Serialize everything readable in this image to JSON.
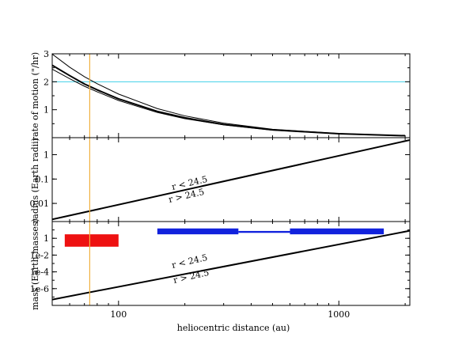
{
  "chart_data": {
    "type": "line",
    "xlabel": "heliocentric distance (au)",
    "xscale": "log",
    "xlim": [
      50,
      2100
    ],
    "x_ticks": [
      100,
      1000
    ],
    "x_tick_labels": [
      "100",
      "1000"
    ],
    "vline": {
      "x": 74,
      "color": "#f0b040"
    },
    "panels": [
      {
        "id": "rate",
        "ylabel": "rate of motion (\"/hr)",
        "yscale": "linear",
        "ylim": [
          0,
          3
        ],
        "y_ticks": [
          1,
          2,
          3
        ],
        "y_tick_labels": [
          "1",
          "2",
          "3"
        ],
        "hline": {
          "y": 2,
          "color": "#40d0e8"
        },
        "series": [
          {
            "style": "thin",
            "x": [
              50,
              60,
              70,
              80,
              100,
              150,
              200,
              300,
              500,
              1000,
              2000
            ],
            "y": [
              2.99,
              2.52,
              2.18,
              1.93,
              1.56,
              1.04,
              0.78,
              0.52,
              0.3,
              0.15,
              0.07
            ]
          },
          {
            "style": "thick",
            "x": [
              50,
              60,
              70,
              80,
              100,
              150,
              200,
              300,
              500,
              1000,
              2000
            ],
            "y": [
              2.59,
              2.22,
              1.92,
              1.71,
              1.39,
              0.94,
              0.71,
              0.47,
              0.28,
              0.14,
              0.07
            ]
          },
          {
            "style": "thin",
            "x": [
              50,
              60,
              70,
              80,
              100,
              150,
              200,
              300,
              500,
              1000,
              2000
            ],
            "y": [
              2.45,
              2.11,
              1.84,
              1.64,
              1.33,
              0.9,
              0.68,
              0.46,
              0.27,
              0.14,
              0.07
            ]
          }
        ]
      },
      {
        "id": "radius",
        "ylabel": "radius (Earth radii)",
        "yscale": "log",
        "ylim": [
          0.0018,
          5
        ],
        "y_ticks": [
          0.01,
          0.1,
          1
        ],
        "y_tick_labels": [
          "0.01",
          "0.1",
          "1"
        ],
        "series": [
          {
            "style": "thick",
            "x": [
              50,
              2100
            ],
            "y": [
              0.0022,
              4.0
            ]
          }
        ],
        "annotations": [
          "r < 24.5",
          "r > 24.5"
        ]
      },
      {
        "id": "mass",
        "ylabel": "mass (Earth masses)",
        "yscale": "log",
        "ylim": [
          1e-08,
          100
        ],
        "y_ticks": [
          1e-06,
          0.0001,
          0.01,
          1
        ],
        "y_tick_labels": [
          "1e-6",
          "1e-4",
          "1e-2",
          "1"
        ],
        "series": [
          {
            "style": "thick",
            "x": [
              50,
              2100
            ],
            "y": [
              5e-08,
              8
            ]
          }
        ],
        "bars": [
          {
            "x": [
              57,
              100
            ],
            "y": [
              0.1,
              3
            ],
            "color": "#ee1111"
          },
          {
            "x": [
              150,
              350
            ],
            "y": [
              3,
              15
            ],
            "color": "#1122dd"
          },
          {
            "x": [
              350,
              600
            ],
            "y": [
              4.5,
              7.5
            ],
            "color": "#1122dd"
          },
          {
            "x": [
              600,
              1600
            ],
            "y": [
              3,
              15
            ],
            "color": "#1122dd"
          }
        ],
        "annotations": [
          "r < 24.5",
          "r > 24.5"
        ]
      }
    ]
  }
}
